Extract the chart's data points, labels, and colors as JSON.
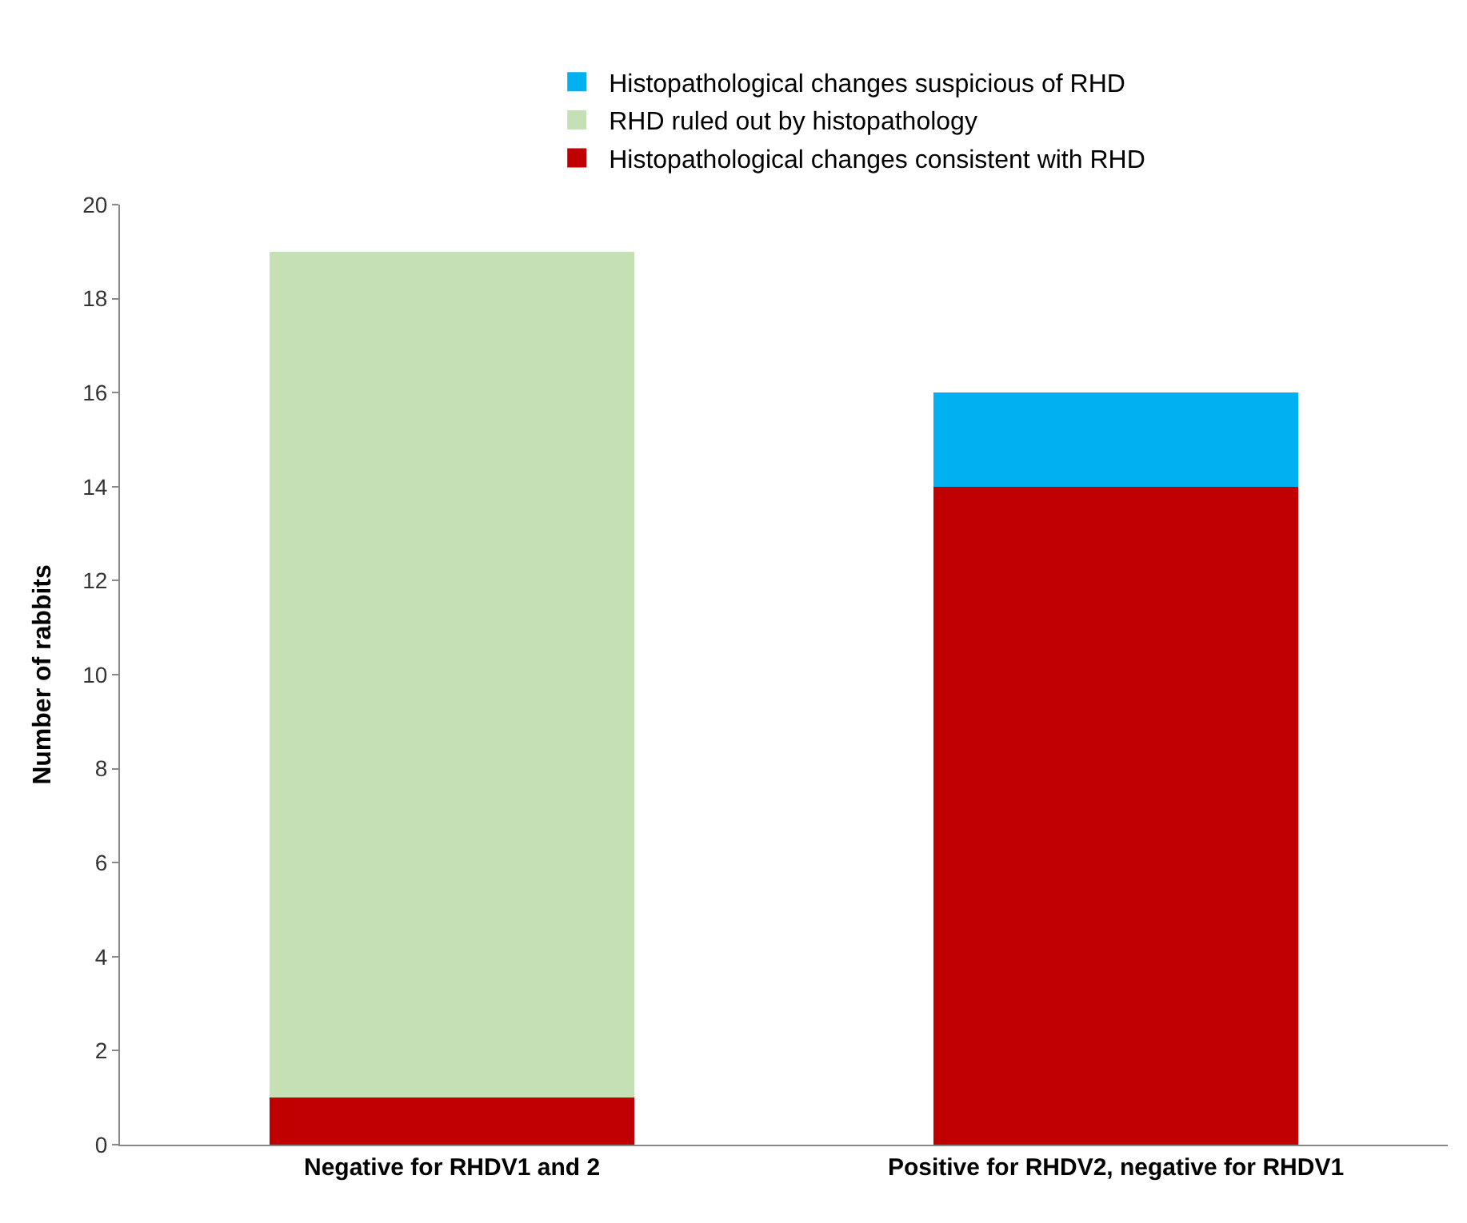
{
  "chart_data": {
    "type": "bar",
    "stacked": true,
    "ylabel": "Number of rabbits",
    "categories": [
      "Negative for RHDV1 and 2",
      "Positive for RHDV2, negative for RHDV1"
    ],
    "series": [
      {
        "name": "Histopathological changes consistent with RHD",
        "color": "#c00000",
        "values": [
          1,
          14
        ]
      },
      {
        "name": "RHD ruled out by histopathology",
        "color": "#c5e0b4",
        "values": [
          18,
          0
        ]
      },
      {
        "name": "Histopathological changes suspicious of RHD",
        "color": "#00b0f0",
        "values": [
          0,
          2
        ]
      }
    ],
    "ylim": [
      0,
      20
    ],
    "yticks": [
      0,
      2,
      4,
      6,
      8,
      10,
      12,
      14,
      16,
      18,
      20
    ],
    "legend": "top"
  }
}
